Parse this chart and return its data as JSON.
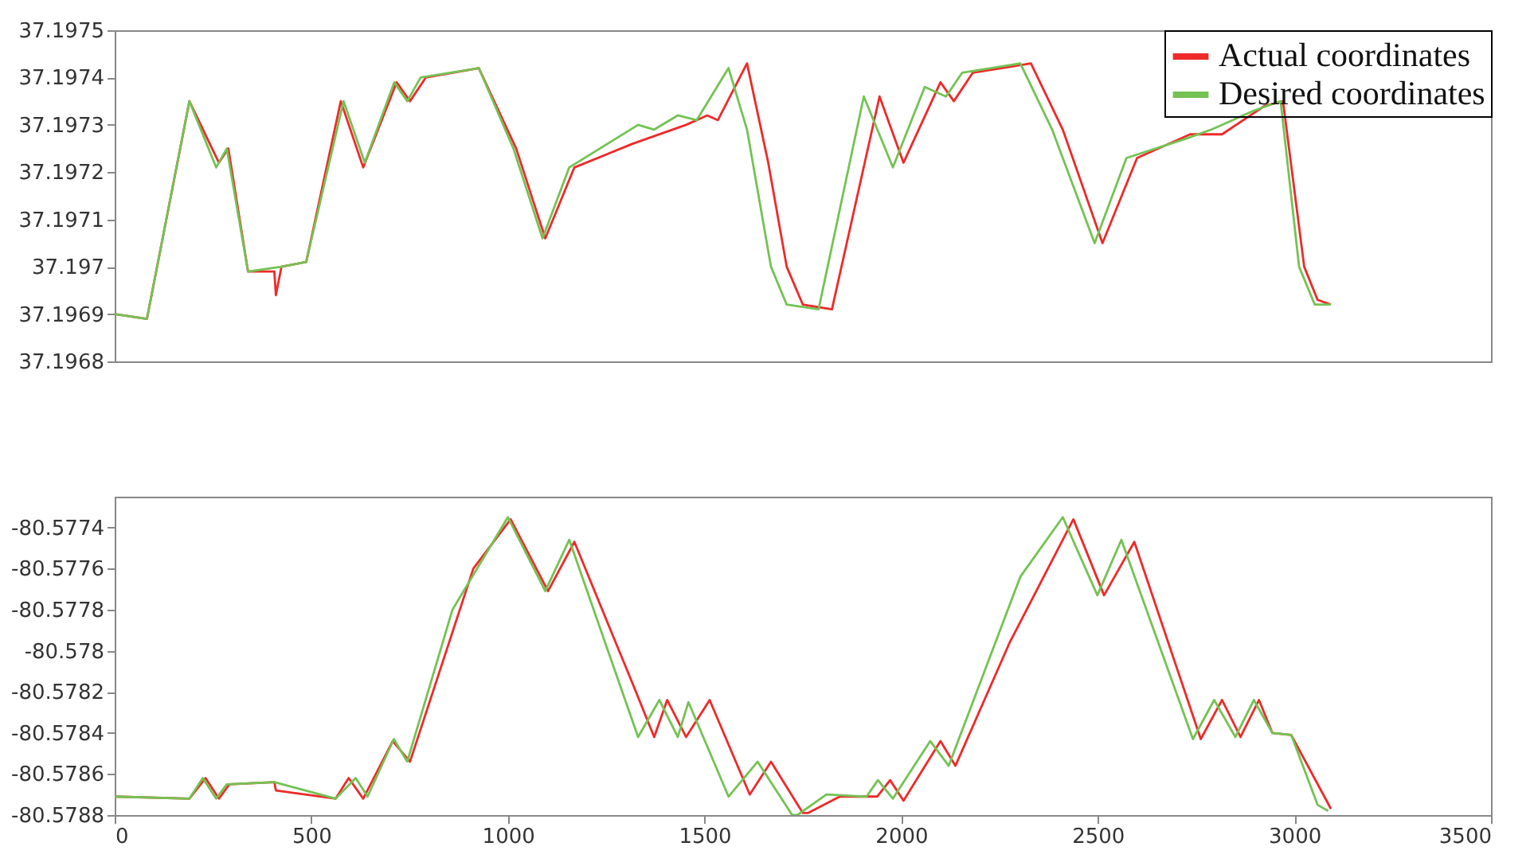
{
  "chart_data": [
    {
      "type": "line",
      "legend": "top right",
      "tick_labels": "y",
      "xlim": [
        0,
        3500
      ],
      "xticks": [
        0,
        500,
        1000,
        1500,
        2000,
        2500,
        3000,
        3500
      ],
      "ylim": [
        37.1968,
        37.1975
      ],
      "yticks": [
        37.1968,
        37.1969,
        37.197,
        37.1971,
        37.1972,
        37.1973,
        37.1974,
        37.1975
      ],
      "series": [
        {
          "name": "Actual coordinates",
          "color": "#ee2a2a",
          "x": [
            0,
            82,
            190,
            265,
            289,
            339,
            406,
            410,
            424,
            487,
            575,
            632,
            717,
            751,
            791,
            926,
            1021,
            1095,
            1169,
            1317,
            1453,
            1507,
            1534,
            1608,
            1662,
            1709,
            1750,
            1824,
            1945,
            2006,
            2100,
            2134,
            2182,
            2330,
            2411,
            2512,
            2600,
            2735,
            2816,
            2924,
            2971,
            3025,
            3059,
            3093
          ],
          "values": [
            37.1969,
            37.19689,
            37.19735,
            37.19722,
            37.19725,
            37.19699,
            37.19699,
            37.19694,
            37.197,
            37.19701,
            37.19735,
            37.19721,
            37.19739,
            37.19735,
            37.1974,
            37.19742,
            37.19725,
            37.19706,
            37.19721,
            37.19726,
            37.1973,
            37.19732,
            37.19731,
            37.19743,
            37.19722,
            37.197,
            37.19692,
            37.19691,
            37.19736,
            37.19722,
            37.19739,
            37.19735,
            37.19741,
            37.19743,
            37.19729,
            37.19705,
            37.19723,
            37.19728,
            37.19728,
            37.19734,
            37.19735,
            37.197,
            37.19693,
            37.19692
          ]
        },
        {
          "name": "Desired coordinates",
          "color": "#74c254",
          "x": [
            0,
            82,
            190,
            258,
            285,
            339,
            424,
            487,
            582,
            636,
            711,
            744,
            778,
            926,
            1014,
            1088,
            1156,
            1331,
            1372,
            1432,
            1480,
            1561,
            1608,
            1669,
            1709,
            1790,
            1905,
            1979,
            2060,
            2114,
            2155,
            2303,
            2384,
            2492,
            2573,
            2722,
            2789,
            2897,
            2965,
            3012,
            3052,
            3093
          ],
          "values": [
            37.1969,
            37.19689,
            37.19735,
            37.19721,
            37.19725,
            37.19699,
            37.197,
            37.19701,
            37.19735,
            37.19722,
            37.19739,
            37.19735,
            37.1974,
            37.19742,
            37.19725,
            37.19706,
            37.19721,
            37.1973,
            37.19729,
            37.19732,
            37.19731,
            37.19742,
            37.19729,
            37.197,
            37.19692,
            37.19691,
            37.19736,
            37.19721,
            37.19738,
            37.19736,
            37.19741,
            37.19743,
            37.19729,
            37.19705,
            37.19723,
            37.19727,
            37.19729,
            37.19733,
            37.19735,
            37.197,
            37.19692,
            37.19692
          ]
        }
      ]
    },
    {
      "type": "line",
      "xlim": [
        0,
        3500
      ],
      "xticks": [
        0,
        500,
        1000,
        1500,
        2000,
        2500,
        3000,
        3500
      ],
      "ylim": [
        -80.5788,
        -80.57725
      ],
      "yticks": [
        -80.5788,
        -80.5786,
        -80.5784,
        -80.5782,
        -80.578,
        -80.5778,
        -80.5776,
        -80.5774
      ],
      "series": [
        {
          "color": "#ee2a2a",
          "x": [
            0,
            190,
            231,
            265,
            292,
            406,
            410,
            562,
            595,
            632,
            707,
            751,
            912,
            1007,
            1102,
            1169,
            1317,
            1372,
            1405,
            1453,
            1513,
            1615,
            1669,
            1750,
            1763,
            1844,
            1939,
            1972,
            2006,
            2100,
            2138,
            2276,
            2438,
            2516,
            2593,
            2762,
            2816,
            2863,
            2910,
            2944,
            2992,
            3093
          ],
          "values": [
            -80.57871,
            -80.57872,
            -80.57862,
            -80.57872,
            -80.57865,
            -80.57864,
            -80.57868,
            -80.57872,
            -80.57862,
            -80.57872,
            -80.57844,
            -80.57854,
            -80.5776,
            -80.57736,
            -80.57771,
            -80.57747,
            -80.57816,
            -80.57842,
            -80.57824,
            -80.57842,
            -80.57824,
            -80.5787,
            -80.57854,
            -80.57879,
            -80.57879,
            -80.57871,
            -80.57871,
            -80.57863,
            -80.57873,
            -80.57844,
            -80.57856,
            -80.57796,
            -80.57736,
            -80.57773,
            -80.57747,
            -80.57843,
            -80.57824,
            -80.57842,
            -80.57824,
            -80.5784,
            -80.57841,
            -80.57877
          ]
        },
        {
          "color": "#74c254",
          "x": [
            0,
            190,
            224,
            258,
            285,
            406,
            562,
            613,
            643,
            710,
            744,
            859,
            1000,
            1095,
            1156,
            1331,
            1385,
            1432,
            1459,
            1561,
            1635,
            1723,
            1736,
            1810,
            1912,
            1941,
            1979,
            2074,
            2121,
            2303,
            2411,
            2499,
            2560,
            2742,
            2796,
            2850,
            2897,
            2944,
            2992,
            3059,
            3086
          ],
          "values": [
            -80.57871,
            -80.57872,
            -80.57862,
            -80.57872,
            -80.57865,
            -80.57864,
            -80.57872,
            -80.57862,
            -80.57871,
            -80.57843,
            -80.57854,
            -80.5778,
            -80.57735,
            -80.57771,
            -80.57746,
            -80.57842,
            -80.57824,
            -80.57842,
            -80.57825,
            -80.57871,
            -80.57854,
            -80.5788,
            -80.5788,
            -80.5787,
            -80.57871,
            -80.57863,
            -80.57872,
            -80.57844,
            -80.57856,
            -80.57764,
            -80.57735,
            -80.57773,
            -80.57746,
            -80.57843,
            -80.57824,
            -80.57842,
            -80.57824,
            -80.5784,
            -80.57841,
            -80.57875,
            -80.57878
          ]
        }
      ]
    }
  ]
}
